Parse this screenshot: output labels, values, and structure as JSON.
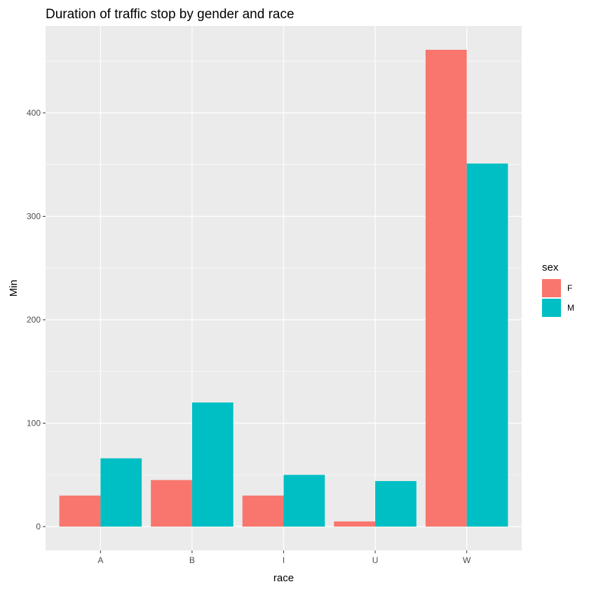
{
  "chart_data": {
    "type": "bar",
    "title": "Duration of traffic stop by gender and race",
    "xlabel": "race",
    "ylabel": "Min",
    "categories": [
      "A",
      "B",
      "I",
      "U",
      "W"
    ],
    "series": [
      {
        "name": "F",
        "color": "#F8766D",
        "values": [
          30,
          45,
          30,
          5,
          461
        ]
      },
      {
        "name": "M",
        "color": "#00BFC4",
        "values": [
          66,
          120,
          50,
          44,
          351
        ]
      }
    ],
    "ylim": [
      -23.05,
      484.05
    ],
    "yticks": [
      0,
      100,
      200,
      300,
      400
    ],
    "grid": true,
    "legend": {
      "title": "sex",
      "position": "right"
    },
    "panel_background": "#EBEBEB",
    "grid_color": "#FFFFFF"
  }
}
